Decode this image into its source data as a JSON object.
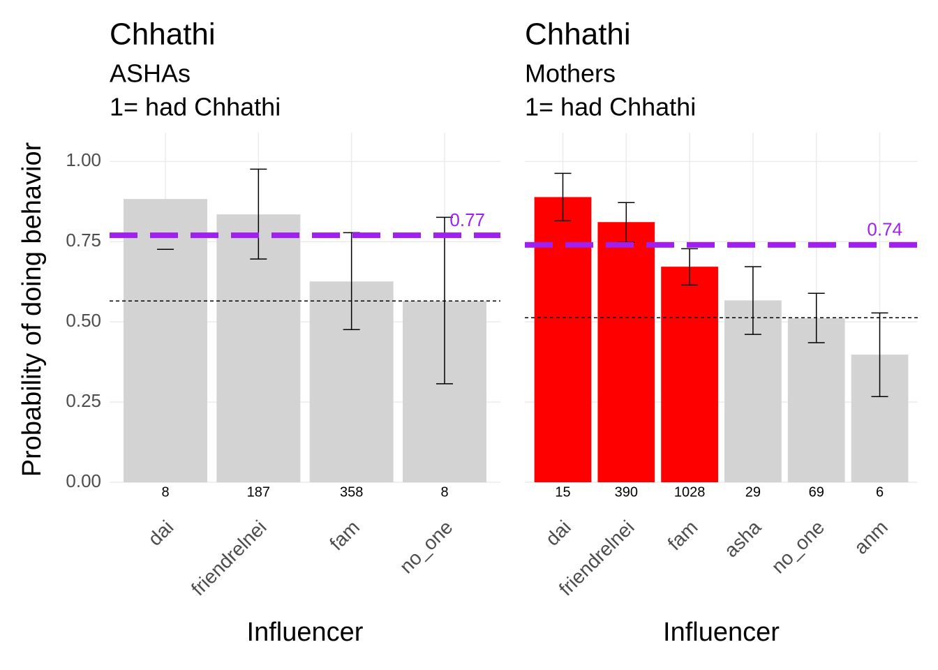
{
  "chart_data": [
    {
      "type": "bar",
      "title": "Chhathi",
      "subtitle": [
        "ASHAs",
        "1= had Chhathi"
      ],
      "x_label": "Influencer",
      "y_label": "Probability of doing behavior",
      "categories": [
        "dai",
        "friendrelnei",
        "fam",
        "no_one"
      ],
      "values": [
        0.883,
        0.835,
        0.626,
        0.565
      ],
      "error_low": [
        0.726,
        0.696,
        0.476,
        0.307
      ],
      "error_high": [
        null,
        0.976,
        0.778,
        0.826
      ],
      "colors": [
        "#d3d3d3",
        "#d3d3d3",
        "#d3d3d3",
        "#d3d3d3"
      ],
      "counts": [
        8,
        187,
        358,
        8
      ],
      "mean_line": 0.77,
      "mean_color": "#a020f0",
      "baseline": 0.565,
      "ylim": [
        0,
        1.09
      ],
      "yticks": [
        {
          "value": 0,
          "label": "0.00"
        },
        0.25,
        {
          "value": 0.5,
          "label": "0.50"
        },
        0.75,
        {
          "value": 1,
          "label": "1.00"
        }
      ],
      "grid": true
    },
    {
      "type": "bar",
      "title": "Chhathi",
      "subtitle": [
        "Mothers",
        "1= had Chhathi"
      ],
      "x_label": "Influencer",
      "categories": [
        "dai",
        "friendrelnei",
        "fam",
        "asha",
        "no_one",
        "anm"
      ],
      "values": [
        0.889,
        0.811,
        0.672,
        0.567,
        0.511,
        0.398
      ],
      "error_low": [
        0.815,
        0.748,
        0.615,
        0.461,
        0.435,
        0.267
      ],
      "error_high": [
        0.963,
        0.872,
        0.728,
        0.672,
        0.589,
        0.528
      ],
      "colors": [
        "#ff0000",
        "#ff0000",
        "#ff0000",
        "#d3d3d3",
        "#d3d3d3",
        "#d3d3d3"
      ],
      "counts": [
        15,
        390,
        1028,
        29,
        69,
        6
      ],
      "mean_line": 0.74,
      "mean_color": "#a020f0",
      "baseline": 0.513,
      "ylim": [
        0,
        1.09
      ],
      "yticks": [
        0,
        0.25,
        0.5,
        0.75,
        1
      ],
      "grid": true
    }
  ]
}
